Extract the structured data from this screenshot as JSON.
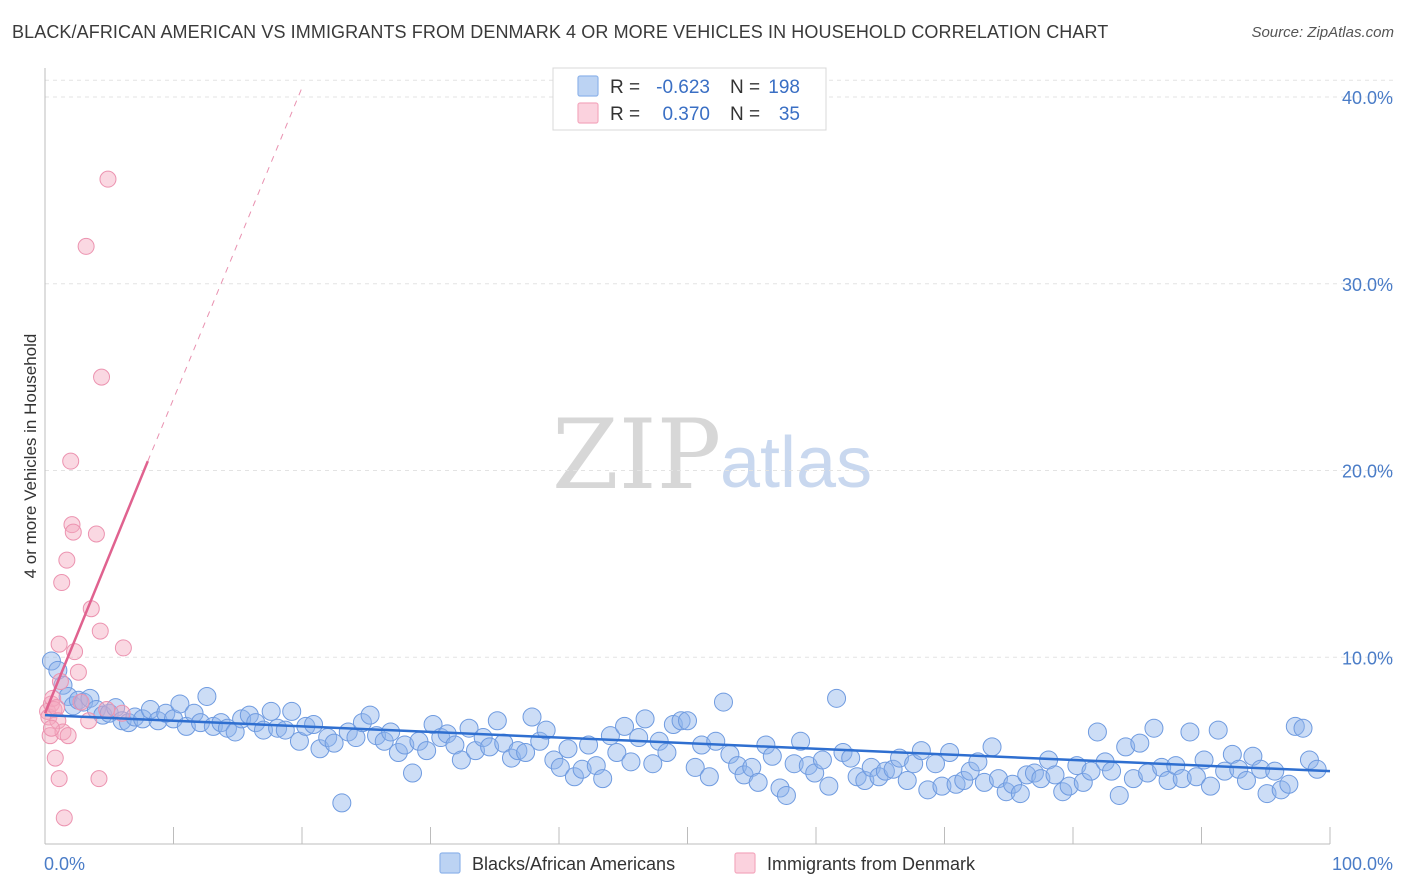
{
  "title": "BLACK/AFRICAN AMERICAN VS IMMIGRANTS FROM DENMARK 4 OR MORE VEHICLES IN HOUSEHOLD CORRELATION CHART",
  "source": "Source: ZipAtlas.com",
  "watermark": {
    "zip": "ZIP",
    "atlas": "atlas"
  },
  "legend": {
    "r_label": "R =",
    "n_label": "N =",
    "rows": [
      {
        "r": "-0.623",
        "n": "198",
        "color": "#8fb4ea"
      },
      {
        "r": "0.370",
        "n": "35",
        "color": "#f4a9bf"
      }
    ]
  },
  "chart_data": {
    "type": "scatter",
    "title": "BLACK/AFRICAN AMERICAN VS IMMIGRANTS FROM DENMARK 4 OR MORE VEHICLES IN HOUSEHOLD CORRELATION CHART",
    "xlabel": "",
    "ylabel": "4 or more Vehicles in Household",
    "xlim": [
      0,
      100
    ],
    "ylim": [
      0,
      40
    ],
    "x_tick_labels": [
      "0.0%",
      "100.0%"
    ],
    "y_ticks": [
      10,
      20,
      30,
      40
    ],
    "y_tick_labels": [
      "10.0%",
      "20.0%",
      "30.0%",
      "40.0%"
    ],
    "grid": true,
    "legend_position": "top-center",
    "series": [
      {
        "name": "Blacks/African Americans",
        "color": "#8fb4ea",
        "line_color": "#2f6fd0",
        "trend": {
          "x": [
            0,
            100
          ],
          "y": [
            6.9,
            3.9
          ]
        },
        "points": [
          {
            "x": 0.5,
            "y": 9.8
          },
          {
            "x": 1.0,
            "y": 9.3
          },
          {
            "x": 1.4,
            "y": 8.5
          },
          {
            "x": 1.8,
            "y": 7.9
          },
          {
            "x": 2.2,
            "y": 7.4
          },
          {
            "x": 2.6,
            "y": 7.7
          },
          {
            "x": 3.0,
            "y": 7.6
          },
          {
            "x": 3.5,
            "y": 7.8
          },
          {
            "x": 4.0,
            "y": 7.2
          },
          {
            "x": 4.5,
            "y": 6.9
          },
          {
            "x": 5.0,
            "y": 7.0
          },
          {
            "x": 5.5,
            "y": 7.3
          },
          {
            "x": 6.0,
            "y": 6.6
          },
          {
            "x": 6.5,
            "y": 6.5
          },
          {
            "x": 7.0,
            "y": 6.8
          },
          {
            "x": 7.6,
            "y": 6.7
          },
          {
            "x": 8.2,
            "y": 7.2
          },
          {
            "x": 8.8,
            "y": 6.6
          },
          {
            "x": 9.4,
            "y": 7.0
          },
          {
            "x": 10.0,
            "y": 6.7
          },
          {
            "x": 10.5,
            "y": 7.5
          },
          {
            "x": 11.0,
            "y": 6.3
          },
          {
            "x": 11.6,
            "y": 7.0
          },
          {
            "x": 12.1,
            "y": 6.5
          },
          {
            "x": 12.6,
            "y": 7.9
          },
          {
            "x": 13.1,
            "y": 6.3
          },
          {
            "x": 13.7,
            "y": 6.5
          },
          {
            "x": 14.2,
            "y": 6.2
          },
          {
            "x": 14.8,
            "y": 6.0
          },
          {
            "x": 15.3,
            "y": 6.7
          },
          {
            "x": 15.9,
            "y": 6.9
          },
          {
            "x": 16.4,
            "y": 6.5
          },
          {
            "x": 17.0,
            "y": 6.1
          },
          {
            "x": 17.6,
            "y": 7.1
          },
          {
            "x": 18.1,
            "y": 6.2
          },
          {
            "x": 18.7,
            "y": 6.1
          },
          {
            "x": 19.2,
            "y": 7.1
          },
          {
            "x": 19.8,
            "y": 5.5
          },
          {
            "x": 20.3,
            "y": 6.3
          },
          {
            "x": 20.9,
            "y": 6.4
          },
          {
            "x": 21.4,
            "y": 5.1
          },
          {
            "x": 22.0,
            "y": 5.7
          },
          {
            "x": 22.5,
            "y": 5.4
          },
          {
            "x": 23.1,
            "y": 2.2
          },
          {
            "x": 23.6,
            "y": 6.0
          },
          {
            "x": 24.2,
            "y": 5.7
          },
          {
            "x": 24.7,
            "y": 6.5
          },
          {
            "x": 25.3,
            "y": 6.9
          },
          {
            "x": 25.8,
            "y": 5.8
          },
          {
            "x": 26.4,
            "y": 5.5
          },
          {
            "x": 26.9,
            "y": 6.0
          },
          {
            "x": 27.5,
            "y": 4.9
          },
          {
            "x": 28.0,
            "y": 5.3
          },
          {
            "x": 28.6,
            "y": 3.8
          },
          {
            "x": 29.1,
            "y": 5.5
          },
          {
            "x": 29.7,
            "y": 5.0
          },
          {
            "x": 30.2,
            "y": 6.4
          },
          {
            "x": 30.8,
            "y": 5.7
          },
          {
            "x": 31.3,
            "y": 5.9
          },
          {
            "x": 31.9,
            "y": 5.3
          },
          {
            "x": 32.4,
            "y": 4.5
          },
          {
            "x": 33.0,
            "y": 6.2
          },
          {
            "x": 33.5,
            "y": 5.0
          },
          {
            "x": 34.1,
            "y": 5.7
          },
          {
            "x": 34.6,
            "y": 5.2
          },
          {
            "x": 35.2,
            "y": 6.6
          },
          {
            "x": 35.7,
            "y": 5.4
          },
          {
            "x": 36.3,
            "y": 4.6
          },
          {
            "x": 36.8,
            "y": 5.0
          },
          {
            "x": 37.4,
            "y": 4.9
          },
          {
            "x": 37.9,
            "y": 6.8
          },
          {
            "x": 38.5,
            "y": 5.5
          },
          {
            "x": 39.0,
            "y": 6.1
          },
          {
            "x": 39.6,
            "y": 4.5
          },
          {
            "x": 40.1,
            "y": 4.1
          },
          {
            "x": 40.7,
            "y": 5.1
          },
          {
            "x": 41.2,
            "y": 3.6
          },
          {
            "x": 41.8,
            "y": 4.0
          },
          {
            "x": 42.3,
            "y": 5.3
          },
          {
            "x": 42.9,
            "y": 4.2
          },
          {
            "x": 43.4,
            "y": 3.5
          },
          {
            "x": 44.0,
            "y": 5.8
          },
          {
            "x": 44.5,
            "y": 4.9
          },
          {
            "x": 45.1,
            "y": 6.3
          },
          {
            "x": 45.6,
            "y": 4.4
          },
          {
            "x": 46.2,
            "y": 5.7
          },
          {
            "x": 46.7,
            "y": 6.7
          },
          {
            "x": 47.3,
            "y": 4.3
          },
          {
            "x": 47.8,
            "y": 5.5
          },
          {
            "x": 48.4,
            "y": 4.9
          },
          {
            "x": 48.9,
            "y": 6.4
          },
          {
            "x": 49.5,
            "y": 6.6
          },
          {
            "x": 50.0,
            "y": 6.6
          },
          {
            "x": 50.6,
            "y": 4.1
          },
          {
            "x": 51.1,
            "y": 5.3
          },
          {
            "x": 51.7,
            "y": 3.6
          },
          {
            "x": 52.2,
            "y": 5.5
          },
          {
            "x": 52.8,
            "y": 7.6
          },
          {
            "x": 53.3,
            "y": 4.8
          },
          {
            "x": 53.9,
            "y": 4.2
          },
          {
            "x": 54.4,
            "y": 3.7
          },
          {
            "x": 55.0,
            "y": 4.1
          },
          {
            "x": 55.5,
            "y": 3.3
          },
          {
            "x": 56.1,
            "y": 5.3
          },
          {
            "x": 56.6,
            "y": 4.7
          },
          {
            "x": 57.2,
            "y": 3.0
          },
          {
            "x": 57.7,
            "y": 2.6
          },
          {
            "x": 58.3,
            "y": 4.3
          },
          {
            "x": 58.8,
            "y": 5.5
          },
          {
            "x": 59.4,
            "y": 4.2
          },
          {
            "x": 59.9,
            "y": 3.8
          },
          {
            "x": 60.5,
            "y": 4.5
          },
          {
            "x": 61.0,
            "y": 3.1
          },
          {
            "x": 61.6,
            "y": 7.8
          },
          {
            "x": 62.1,
            "y": 4.9
          },
          {
            "x": 62.7,
            "y": 4.6
          },
          {
            "x": 63.2,
            "y": 3.6
          },
          {
            "x": 63.8,
            "y": 3.4
          },
          {
            "x": 64.3,
            "y": 4.1
          },
          {
            "x": 64.9,
            "y": 3.6
          },
          {
            "x": 65.4,
            "y": 3.9
          },
          {
            "x": 66.0,
            "y": 4.0
          },
          {
            "x": 66.5,
            "y": 4.6
          },
          {
            "x": 67.1,
            "y": 3.4
          },
          {
            "x": 67.6,
            "y": 4.3
          },
          {
            "x": 68.2,
            "y": 5.0
          },
          {
            "x": 68.7,
            "y": 2.9
          },
          {
            "x": 69.3,
            "y": 4.3
          },
          {
            "x": 69.8,
            "y": 3.1
          },
          {
            "x": 70.4,
            "y": 4.9
          },
          {
            "x": 70.9,
            "y": 3.2
          },
          {
            "x": 71.5,
            "y": 3.4
          },
          {
            "x": 72.0,
            "y": 3.9
          },
          {
            "x": 72.6,
            "y": 4.4
          },
          {
            "x": 73.1,
            "y": 3.3
          },
          {
            "x": 73.7,
            "y": 5.2
          },
          {
            "x": 74.2,
            "y": 3.5
          },
          {
            "x": 74.8,
            "y": 2.8
          },
          {
            "x": 75.3,
            "y": 3.2
          },
          {
            "x": 75.9,
            "y": 2.7
          },
          {
            "x": 76.4,
            "y": 3.7
          },
          {
            "x": 77.0,
            "y": 3.8
          },
          {
            "x": 77.5,
            "y": 3.5
          },
          {
            "x": 78.1,
            "y": 4.5
          },
          {
            "x": 78.6,
            "y": 3.7
          },
          {
            "x": 79.2,
            "y": 2.8
          },
          {
            "x": 79.7,
            "y": 3.1
          },
          {
            "x": 80.3,
            "y": 4.2
          },
          {
            "x": 80.8,
            "y": 3.3
          },
          {
            "x": 81.4,
            "y": 3.9
          },
          {
            "x": 81.9,
            "y": 6.0
          },
          {
            "x": 82.5,
            "y": 4.4
          },
          {
            "x": 83.0,
            "y": 3.9
          },
          {
            "x": 83.6,
            "y": 2.6
          },
          {
            "x": 84.1,
            "y": 5.2
          },
          {
            "x": 84.7,
            "y": 3.5
          },
          {
            "x": 85.2,
            "y": 5.4
          },
          {
            "x": 85.8,
            "y": 3.8
          },
          {
            "x": 86.3,
            "y": 6.2
          },
          {
            "x": 86.9,
            "y": 4.1
          },
          {
            "x": 87.4,
            "y": 3.4
          },
          {
            "x": 88.0,
            "y": 4.2
          },
          {
            "x": 88.5,
            "y": 3.5
          },
          {
            "x": 89.1,
            "y": 6.0
          },
          {
            "x": 89.6,
            "y": 3.6
          },
          {
            "x": 90.2,
            "y": 4.5
          },
          {
            "x": 90.7,
            "y": 3.1
          },
          {
            "x": 91.3,
            "y": 6.1
          },
          {
            "x": 91.8,
            "y": 3.9
          },
          {
            "x": 92.4,
            "y": 4.8
          },
          {
            "x": 92.9,
            "y": 4.0
          },
          {
            "x": 93.5,
            "y": 3.4
          },
          {
            "x": 94.0,
            "y": 4.7
          },
          {
            "x": 94.6,
            "y": 4.0
          },
          {
            "x": 95.1,
            "y": 2.7
          },
          {
            "x": 95.7,
            "y": 3.9
          },
          {
            "x": 96.2,
            "y": 2.9
          },
          {
            "x": 96.8,
            "y": 3.2
          },
          {
            "x": 97.3,
            "y": 6.3
          },
          {
            "x": 97.9,
            "y": 6.2
          },
          {
            "x": 98.4,
            "y": 4.5
          },
          {
            "x": 99.0,
            "y": 4.0
          }
        ]
      },
      {
        "name": "Immigrants from Denmark",
        "color": "#f4a9bf",
        "line_color": "#e0628f",
        "trend": {
          "x": [
            0,
            8
          ],
          "y": [
            7.0,
            20.5
          ]
        },
        "trend_dashed": {
          "x": [
            8,
            20
          ],
          "y": [
            20.5,
            40.5
          ]
        },
        "points": [
          {
            "x": 0.2,
            "y": 7.1
          },
          {
            "x": 0.3,
            "y": 6.8
          },
          {
            "x": 0.4,
            "y": 5.8
          },
          {
            "x": 0.5,
            "y": 7.5
          },
          {
            "x": 0.6,
            "y": 7.8
          },
          {
            "x": 0.7,
            "y": 7.2
          },
          {
            "x": 0.8,
            "y": 4.6
          },
          {
            "x": 0.9,
            "y": 7.3
          },
          {
            "x": 1.0,
            "y": 6.6
          },
          {
            "x": 1.1,
            "y": 10.7
          },
          {
            "x": 1.2,
            "y": 8.7
          },
          {
            "x": 1.3,
            "y": 14.0
          },
          {
            "x": 1.4,
            "y": 6.0
          },
          {
            "x": 1.5,
            "y": 1.4
          },
          {
            "x": 1.7,
            "y": 15.2
          },
          {
            "x": 1.8,
            "y": 5.8
          },
          {
            "x": 2.0,
            "y": 20.5
          },
          {
            "x": 2.1,
            "y": 17.1
          },
          {
            "x": 2.2,
            "y": 16.7
          },
          {
            "x": 2.3,
            "y": 10.3
          },
          {
            "x": 2.6,
            "y": 9.2
          },
          {
            "x": 2.8,
            "y": 7.6
          },
          {
            "x": 3.2,
            "y": 32.0
          },
          {
            "x": 3.4,
            "y": 6.6
          },
          {
            "x": 3.6,
            "y": 12.6
          },
          {
            "x": 4.0,
            "y": 16.6
          },
          {
            "x": 4.2,
            "y": 3.5
          },
          {
            "x": 4.3,
            "y": 11.4
          },
          {
            "x": 4.4,
            "y": 25.0
          },
          {
            "x": 4.8,
            "y": 7.2
          },
          {
            "x": 4.9,
            "y": 35.6
          },
          {
            "x": 6.0,
            "y": 7.0
          },
          {
            "x": 6.1,
            "y": 10.5
          },
          {
            "x": 1.1,
            "y": 3.5
          },
          {
            "x": 0.5,
            "y": 6.2
          }
        ]
      }
    ]
  }
}
